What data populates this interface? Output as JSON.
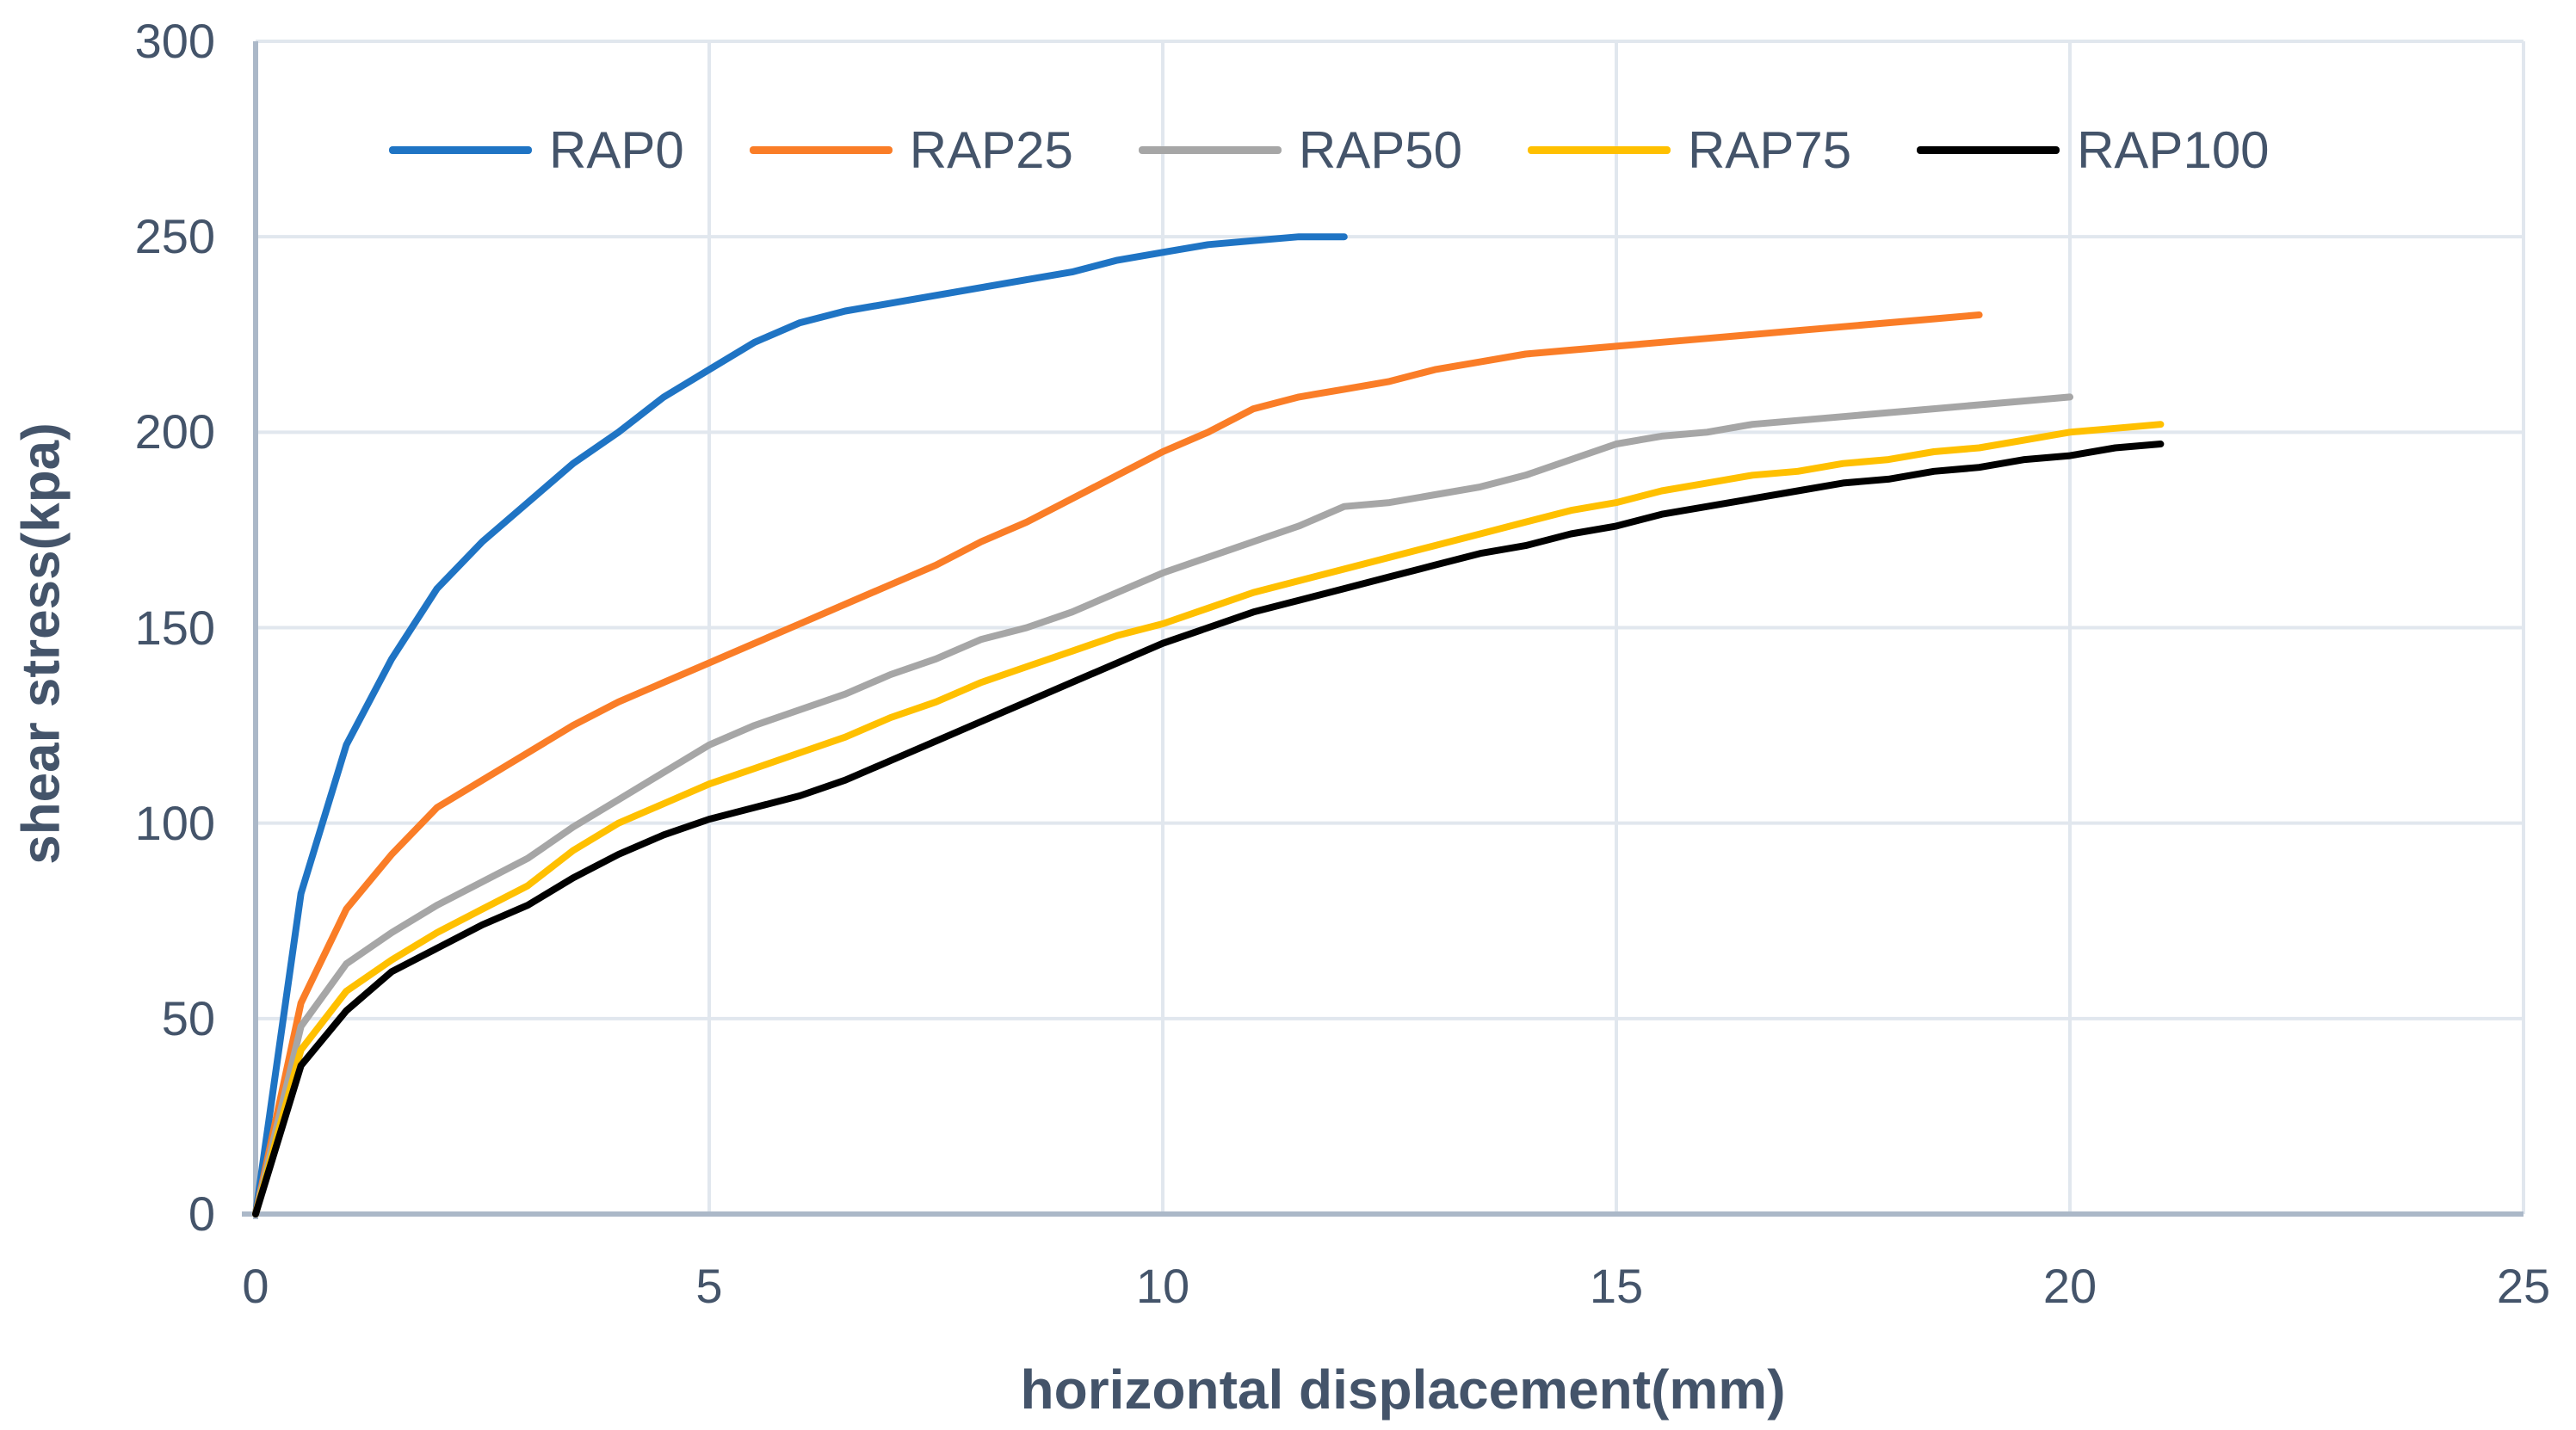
{
  "chart_data": {
    "type": "line",
    "title": "",
    "xlabel": "horizontal displacement(mm)",
    "ylabel": "shear stress(kpa)",
    "xlim": [
      0,
      25
    ],
    "ylim": [
      0,
      300
    ],
    "x_ticks": [
      0,
      5,
      10,
      15,
      20,
      25
    ],
    "y_ticks": [
      0,
      50,
      100,
      150,
      200,
      250,
      300
    ],
    "grid": true,
    "legend_position": "top-center-inside",
    "series": [
      {
        "name": "RAP0",
        "color": "#1F74C4",
        "points": [
          [
            0,
            0
          ],
          [
            0.5,
            82
          ],
          [
            1,
            120
          ],
          [
            1.5,
            142
          ],
          [
            2,
            160
          ],
          [
            2.5,
            172
          ],
          [
            3,
            182
          ],
          [
            3.5,
            192
          ],
          [
            4,
            200
          ],
          [
            4.5,
            209
          ],
          [
            5,
            216
          ],
          [
            5.5,
            223
          ],
          [
            6,
            228
          ],
          [
            6.5,
            231
          ],
          [
            7,
            233
          ],
          [
            7.5,
            235
          ],
          [
            8,
            237
          ],
          [
            8.5,
            239
          ],
          [
            9,
            241
          ],
          [
            9.5,
            244
          ],
          [
            10,
            246
          ],
          [
            10.5,
            248
          ],
          [
            11,
            249
          ],
          [
            11.5,
            250
          ],
          [
            12,
            250
          ]
        ]
      },
      {
        "name": "RAP25",
        "color": "#FA7D27",
        "points": [
          [
            0,
            0
          ],
          [
            0.5,
            54
          ],
          [
            1,
            78
          ],
          [
            1.5,
            92
          ],
          [
            2,
            104
          ],
          [
            2.5,
            111
          ],
          [
            3,
            118
          ],
          [
            3.5,
            125
          ],
          [
            4,
            131
          ],
          [
            4.5,
            136
          ],
          [
            5,
            141
          ],
          [
            5.5,
            146
          ],
          [
            6,
            151
          ],
          [
            6.5,
            156
          ],
          [
            7,
            161
          ],
          [
            7.5,
            166
          ],
          [
            8,
            172
          ],
          [
            8.5,
            177
          ],
          [
            9,
            183
          ],
          [
            9.5,
            189
          ],
          [
            10,
            195
          ],
          [
            10.5,
            200
          ],
          [
            11,
            206
          ],
          [
            11.5,
            209
          ],
          [
            12,
            211
          ],
          [
            12.5,
            213
          ],
          [
            13,
            216
          ],
          [
            13.5,
            218
          ],
          [
            14,
            220
          ],
          [
            14.5,
            221
          ],
          [
            15,
            222
          ],
          [
            15.5,
            223
          ],
          [
            16,
            224
          ],
          [
            16.5,
            225
          ],
          [
            17,
            226
          ],
          [
            17.5,
            227
          ],
          [
            18,
            228
          ],
          [
            18.5,
            229
          ],
          [
            19,
            230
          ]
        ]
      },
      {
        "name": "RAP50",
        "color": "#A6A6A6",
        "points": [
          [
            0,
            0
          ],
          [
            0.5,
            48
          ],
          [
            1,
            64
          ],
          [
            1.5,
            72
          ],
          [
            2,
            79
          ],
          [
            2.5,
            85
          ],
          [
            3,
            91
          ],
          [
            3.5,
            99
          ],
          [
            4,
            106
          ],
          [
            4.5,
            113
          ],
          [
            5,
            120
          ],
          [
            5.5,
            125
          ],
          [
            6,
            129
          ],
          [
            6.5,
            133
          ],
          [
            7,
            138
          ],
          [
            7.5,
            142
          ],
          [
            8,
            147
          ],
          [
            8.5,
            150
          ],
          [
            9,
            154
          ],
          [
            9.5,
            159
          ],
          [
            10,
            164
          ],
          [
            10.5,
            168
          ],
          [
            11,
            172
          ],
          [
            11.5,
            176
          ],
          [
            12,
            181
          ],
          [
            12.5,
            182
          ],
          [
            13,
            184
          ],
          [
            13.5,
            186
          ],
          [
            14,
            189
          ],
          [
            14.5,
            193
          ],
          [
            15,
            197
          ],
          [
            15.5,
            199
          ],
          [
            16,
            200
          ],
          [
            16.5,
            202
          ],
          [
            17,
            203
          ],
          [
            17.5,
            204
          ],
          [
            18,
            205
          ],
          [
            18.5,
            206
          ],
          [
            19,
            207
          ],
          [
            19.5,
            208
          ],
          [
            20,
            209
          ]
        ]
      },
      {
        "name": "RAP75",
        "color": "#FFC000",
        "points": [
          [
            0,
            0
          ],
          [
            0.5,
            42
          ],
          [
            1,
            57
          ],
          [
            1.5,
            65
          ],
          [
            2,
            72
          ],
          [
            2.5,
            78
          ],
          [
            3,
            84
          ],
          [
            3.5,
            93
          ],
          [
            4,
            100
          ],
          [
            4.5,
            105
          ],
          [
            5,
            110
          ],
          [
            5.5,
            114
          ],
          [
            6,
            118
          ],
          [
            6.5,
            122
          ],
          [
            7,
            127
          ],
          [
            7.5,
            131
          ],
          [
            8,
            136
          ],
          [
            8.5,
            140
          ],
          [
            9,
            144
          ],
          [
            9.5,
            148
          ],
          [
            10,
            151
          ],
          [
            10.5,
            155
          ],
          [
            11,
            159
          ],
          [
            11.5,
            162
          ],
          [
            12,
            165
          ],
          [
            12.5,
            168
          ],
          [
            13,
            171
          ],
          [
            13.5,
            174
          ],
          [
            14,
            177
          ],
          [
            14.5,
            180
          ],
          [
            15,
            182
          ],
          [
            15.5,
            185
          ],
          [
            16,
            187
          ],
          [
            16.5,
            189
          ],
          [
            17,
            190
          ],
          [
            17.5,
            192
          ],
          [
            18,
            193
          ],
          [
            18.5,
            195
          ],
          [
            19,
            196
          ],
          [
            19.5,
            198
          ],
          [
            20,
            200
          ],
          [
            20.5,
            201
          ],
          [
            21,
            202
          ]
        ]
      },
      {
        "name": "RAP100",
        "color": "#000000",
        "points": [
          [
            0,
            0
          ],
          [
            0.5,
            38
          ],
          [
            1,
            52
          ],
          [
            1.5,
            62
          ],
          [
            2,
            68
          ],
          [
            2.5,
            74
          ],
          [
            3,
            79
          ],
          [
            3.5,
            86
          ],
          [
            4,
            92
          ],
          [
            4.5,
            97
          ],
          [
            5,
            101
          ],
          [
            5.5,
            104
          ],
          [
            6,
            107
          ],
          [
            6.5,
            111
          ],
          [
            7,
            116
          ],
          [
            7.5,
            121
          ],
          [
            8,
            126
          ],
          [
            8.5,
            131
          ],
          [
            9,
            136
          ],
          [
            9.5,
            141
          ],
          [
            10,
            146
          ],
          [
            10.5,
            150
          ],
          [
            11,
            154
          ],
          [
            11.5,
            157
          ],
          [
            12,
            160
          ],
          [
            12.5,
            163
          ],
          [
            13,
            166
          ],
          [
            13.5,
            169
          ],
          [
            14,
            171
          ],
          [
            14.5,
            174
          ],
          [
            15,
            176
          ],
          [
            15.5,
            179
          ],
          [
            16,
            181
          ],
          [
            16.5,
            183
          ],
          [
            17,
            185
          ],
          [
            17.5,
            187
          ],
          [
            18,
            188
          ],
          [
            18.5,
            190
          ],
          [
            19,
            191
          ],
          [
            19.5,
            193
          ],
          [
            20,
            194
          ],
          [
            20.5,
            196
          ],
          [
            21,
            197
          ]
        ]
      }
    ]
  },
  "colors": {
    "background": "#FFFFFF",
    "text": "#44546A",
    "gridline": "#E1E7EE",
    "axis_line": "#ABB8C8"
  }
}
